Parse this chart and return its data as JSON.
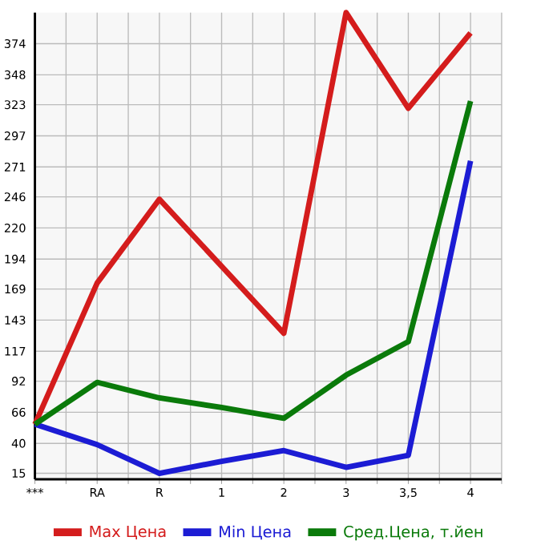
{
  "chart_data": {
    "type": "line",
    "categories": [
      "***",
      "RA",
      "R",
      "1",
      "2",
      "3",
      "3,5",
      "4"
    ],
    "series": [
      {
        "name": "Max Цена",
        "color": "#d41c1c",
        "values": [
          56,
          174,
          244,
          188,
          132,
          400,
          320,
          383
        ]
      },
      {
        "name": "Min Цена",
        "color": "#1c1cd4",
        "values": [
          56,
          39,
          15,
          25,
          34,
          20,
          30,
          276
        ]
      },
      {
        "name": "Сред.Цена, т.йен",
        "color": "#0a7a0a",
        "values": [
          56,
          91,
          78,
          70,
          61,
          97,
          125,
          326
        ]
      }
    ],
    "ylim": [
      10,
      400
    ],
    "yticks": [
      15,
      40,
      66,
      92,
      117,
      143,
      169,
      194,
      220,
      246,
      271,
      297,
      323,
      348,
      374
    ],
    "grid": true,
    "legend": "bottom",
    "marker": "none",
    "line_style": "solid"
  }
}
